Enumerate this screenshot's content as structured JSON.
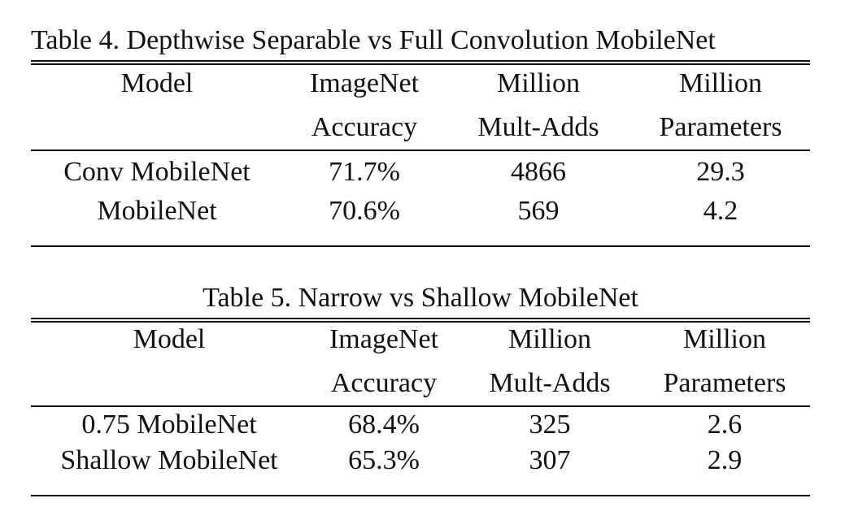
{
  "tables": [
    {
      "caption": "Table 4. Depthwise Separable vs Full Convolution MobileNet",
      "header_line1": [
        "Model",
        "ImageNet",
        "Million",
        "Million"
      ],
      "header_line2": [
        "",
        "Accuracy",
        "Mult-Adds",
        "Parameters"
      ],
      "rows": [
        [
          "Conv MobileNet",
          "71.7%",
          "4866",
          "29.3"
        ],
        [
          "MobileNet",
          "70.6%",
          "569",
          "4.2"
        ]
      ]
    },
    {
      "caption": "Table 5. Narrow vs Shallow MobileNet",
      "header_line1": [
        "Model",
        "ImageNet",
        "Million",
        "Million"
      ],
      "header_line2": [
        "",
        "Accuracy",
        "Mult-Adds",
        "Parameters"
      ],
      "rows": [
        [
          "0.75 MobileNet",
          "68.4%",
          "325",
          "2.6"
        ],
        [
          "Shallow MobileNet",
          "65.3%",
          "307",
          "2.9"
        ]
      ]
    }
  ]
}
